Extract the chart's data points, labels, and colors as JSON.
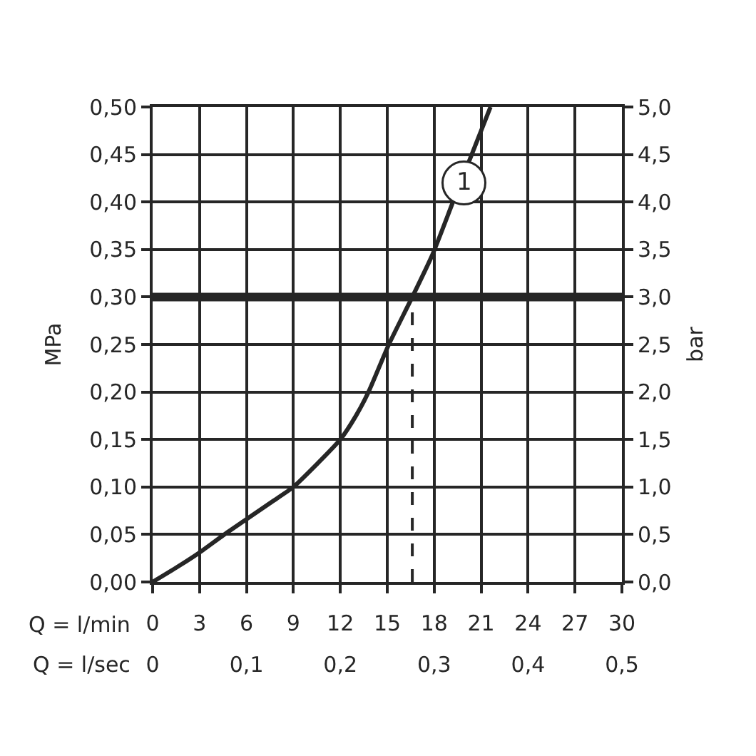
{
  "chart_data": {
    "type": "line",
    "xlabel": "Q = l/min",
    "x2label": "Q = l/sec",
    "ylabel": "MPa",
    "y2label": "bar",
    "xlim": [
      0,
      30
    ],
    "xticks": [
      0,
      3,
      6,
      9,
      12,
      15,
      18,
      21,
      24,
      27,
      30
    ],
    "x2lim": [
      0,
      0.5
    ],
    "x2ticks": [
      0,
      {
        "value": 0.1,
        "label": "0,1"
      },
      {
        "value": 0.2,
        "label": "0,2"
      },
      {
        "value": 0.3,
        "label": "0,3"
      },
      {
        "value": 0.4,
        "label": "0,4"
      },
      {
        "value": 0.5,
        "label": "0,5"
      }
    ],
    "ylim": [
      0,
      0.5
    ],
    "yticks": [
      {
        "value": 0,
        "label": "0,00"
      },
      {
        "value": 0.05,
        "label": "0,05"
      },
      {
        "value": 0.1,
        "label": "0,10"
      },
      {
        "value": 0.15,
        "label": "0,15"
      },
      {
        "value": 0.2,
        "label": "0,20"
      },
      {
        "value": 0.25,
        "label": "0,25"
      },
      {
        "value": 0.3,
        "label": "0,30"
      },
      {
        "value": 0.35,
        "label": "0,35"
      },
      {
        "value": 0.4,
        "label": "0,40"
      },
      {
        "value": 0.45,
        "label": "0,45"
      },
      {
        "value": 0.5,
        "label": "0,50"
      }
    ],
    "y2lim": [
      0,
      5
    ],
    "y2ticks": [
      {
        "value": 0,
        "label": "0,0"
      },
      {
        "value": 0.5,
        "label": "0,5"
      },
      {
        "value": 1,
        "label": "1,0"
      },
      {
        "value": 1.5,
        "label": "1,5"
      },
      {
        "value": 2,
        "label": "2,0"
      },
      {
        "value": 2.5,
        "label": "2,5"
      },
      {
        "value": 3,
        "label": "3,0"
      },
      {
        "value": 3.5,
        "label": "3,5"
      },
      {
        "value": 4,
        "label": "4,0"
      },
      {
        "value": 4.5,
        "label": "4,5"
      },
      {
        "value": 5,
        "label": "5,0"
      }
    ],
    "series": [
      {
        "color": "#262626",
        "x": [
          0,
          1.5,
          3,
          4.5,
          6,
          7.5,
          9,
          10.5,
          12,
          13,
          13.8,
          15.1,
          16.6,
          17.9,
          19.2,
          20.4,
          21.6
        ],
        "values": [
          0,
          0.015,
          0.031,
          0.049,
          0.066,
          0.083,
          0.1,
          0.124,
          0.15,
          0.175,
          0.2,
          0.25,
          0.3,
          0.345,
          0.4,
          0.45,
          0.5
        ]
      },
      {
        "color": "#262626",
        "x": [
          16.6,
          16.6
        ],
        "values": [
          0,
          0.3
        ],
        "line_style": "dashed"
      }
    ],
    "ref_lines": [
      {
        "axis": "y",
        "value": 0.3,
        "color": "#262626"
      }
    ],
    "annotations": [
      {
        "text": "1",
        "x": 19.9,
        "y": 0.42
      }
    ],
    "grid": true,
    "line_style": "solid"
  }
}
